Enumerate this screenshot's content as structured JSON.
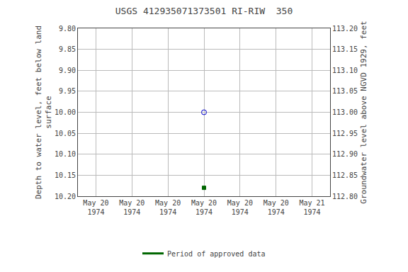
{
  "chart_data": {
    "type": "scatter",
    "title": "USGS 412935071373501 RI-RIW  350",
    "ylabel": "Depth to water level, feet below land\nsurface",
    "y2label": "Groundwater level above NGVD 1929, feet",
    "categories": [
      "May 20\n1974",
      "May 20\n1974",
      "May 20\n1974",
      "May 20\n1974",
      "May 20\n1974",
      "May 20\n1974",
      "May 21\n1974"
    ],
    "ylim": [
      10.2,
      9.8
    ],
    "yticks": [
      {
        "value": 9.8,
        "label": "9.80"
      },
      9.85,
      {
        "value": 9.9,
        "label": "9.90"
      },
      9.95,
      {
        "value": 10.0,
        "label": "10.00"
      },
      10.05,
      {
        "value": 10.1,
        "label": "10.10"
      },
      10.15,
      {
        "value": 10.2,
        "label": "10.20"
      }
    ],
    "y2lim": [
      112.8,
      113.2
    ],
    "y2ticks": [
      {
        "value": 112.8,
        "label": "112.80"
      },
      112.85,
      {
        "value": 112.9,
        "label": "112.90"
      },
      112.95,
      {
        "value": 113.0,
        "label": "113.00"
      },
      113.05,
      {
        "value": 113.1,
        "label": "113.10"
      },
      113.15,
      {
        "value": 113.2,
        "label": "113.20"
      }
    ],
    "grid": true,
    "legend": "bottom",
    "series": [
      {
        "color": "#0000cc",
        "marker": "circle-open",
        "values": [
          null,
          null,
          null,
          10.0,
          null,
          null,
          null
        ]
      },
      {
        "color": "#006600",
        "marker": "square",
        "values": [
          null,
          null,
          null,
          10.18,
          null,
          null,
          null
        ]
      },
      {
        "name": "Period of approved data",
        "type": "line",
        "line_style": "solid",
        "color": "#006600",
        "axis": "y2",
        "values": [
          null,
          null,
          null,
          null,
          null,
          null,
          null
        ]
      }
    ],
    "background_color": "#ffffff",
    "grid_color": "#bbbbbb"
  }
}
